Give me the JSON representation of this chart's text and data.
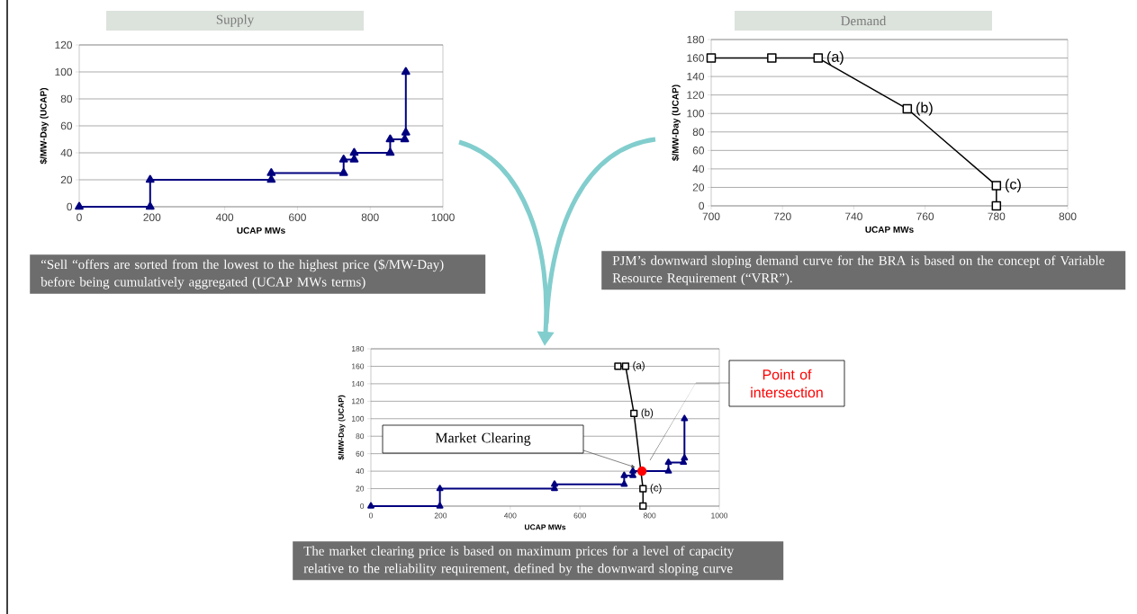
{
  "chart_data": [
    {
      "type": "line",
      "title": "Supply",
      "xlabel": "UCAP MWs",
      "ylabel": "$/MW-Day (UCAP)",
      "xlim": [
        0,
        1000
      ],
      "ylim": [
        0,
        120
      ],
      "xticks": [
        0,
        200,
        400,
        600,
        800,
        1000
      ],
      "yticks": [
        0,
        20,
        40,
        60,
        80,
        100,
        120
      ],
      "grid": "y",
      "series": [
        {
          "color": "#00007f",
          "marker": "triangle",
          "x": [
            0,
            195,
            195,
            528,
            528,
            727,
            727,
            756,
            756,
            855,
            855,
            895,
            898,
            898
          ],
          "values": [
            0,
            0,
            20,
            20,
            25,
            25,
            35,
            35,
            40,
            40,
            50,
            50,
            55,
            100
          ]
        }
      ],
      "annotations": [
        "“Sell “offers are sorted from the lowest to the highest price ($/MW-Day) before being cumulatively aggregated (UCAP MWs terms)"
      ]
    },
    {
      "type": "line",
      "title": "Demand",
      "xlabel": "UCAP MWs",
      "ylabel": "$/MW-Day (UCAP)",
      "xlim": [
        700,
        800
      ],
      "ylim": [
        0,
        180
      ],
      "xticks": [
        700,
        720,
        740,
        760,
        780,
        800
      ],
      "yticks": [
        0,
        20,
        40,
        60,
        80,
        100,
        120,
        140,
        160,
        180
      ],
      "grid": "y",
      "series": [
        {
          "color": "#000000",
          "marker": "square",
          "x": [
            700,
            717,
            730,
            755,
            780,
            780
          ],
          "values": [
            160,
            160,
            160,
            105,
            22,
            0
          ]
        }
      ],
      "annotations": [
        {
          "text": "(a)",
          "x": 730,
          "y": 160
        },
        {
          "text": "(b)",
          "x": 755,
          "y": 105
        },
        {
          "text": "(c)",
          "x": 780,
          "y": 22
        },
        "PJM’s downward sloping demand curve for the BRA is based on the concept of Variable Resource Requirement (“VRR”)."
      ]
    },
    {
      "type": "line",
      "xlabel": "UCAP MWs",
      "ylabel": "$/MW-Day (UCAP)",
      "xlim": [
        0,
        1000
      ],
      "ylim": [
        0,
        180
      ],
      "xticks": [
        0,
        200,
        400,
        600,
        800,
        1000
      ],
      "yticks": [
        0,
        20,
        40,
        60,
        80,
        100,
        120,
        140,
        160,
        180
      ],
      "grid": "y",
      "series": [
        {
          "color": "#00007f",
          "marker": "triangle",
          "x": [
            0,
            198,
            198,
            527,
            527,
            727,
            727,
            752,
            752,
            854,
            854,
            897,
            900,
            900
          ],
          "values": [
            0,
            0,
            20,
            20,
            25,
            25,
            35,
            35,
            40,
            40,
            50,
            50,
            55,
            100
          ]
        },
        {
          "color": "#000000",
          "marker": "square",
          "x": [
            709,
            731,
            755,
            781,
            781
          ],
          "values": [
            160,
            160,
            106,
            20,
            0
          ]
        },
        {
          "type": "scatter",
          "color": "#ff0000",
          "marker": "circle",
          "x": [
            778
          ],
          "values": [
            40
          ]
        }
      ],
      "annotations": [
        {
          "text": "(a)",
          "x": 731,
          "y": 160
        },
        {
          "text": "(b)",
          "x": 755,
          "y": 106
        },
        {
          "text": "(c)",
          "x": 781,
          "y": 20
        },
        "Market Clearing",
        "Point of intersection",
        "The market clearing price is based on maximum prices for a level of capacity relative to the reliability requirement, defined by the downward sloping curve"
      ]
    }
  ]
}
